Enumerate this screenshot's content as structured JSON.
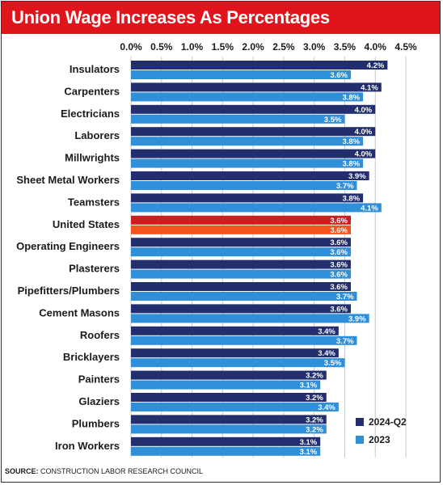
{
  "chart_data": {
    "type": "bar",
    "orientation": "horizontal",
    "title": "Union Wage Increases As Percentages",
    "source_label": "SOURCE:",
    "source_text": "CONSTRUCTION LABOR RESEARCH COUNCIL",
    "categories": [
      "Insulators",
      "Carpenters",
      "Electricians",
      "Laborers",
      "Millwrights",
      "Sheet Metal Workers",
      "Teamsters",
      "United States",
      "Operating Engineers",
      "Plasterers",
      "Pipefitters/Plumbers",
      "Cement Masons",
      "Roofers",
      "Bricklayers",
      "Painters",
      "Glaziers",
      "Plumbers",
      "Iron Workers"
    ],
    "series": [
      {
        "name": "2024-Q2",
        "values": [
          4.2,
          4.1,
          4.0,
          4.0,
          4.0,
          3.9,
          3.8,
          3.6,
          3.6,
          3.6,
          3.6,
          3.6,
          3.4,
          3.4,
          3.2,
          3.2,
          3.2,
          3.1
        ]
      },
      {
        "name": "2023",
        "values": [
          3.6,
          3.8,
          3.5,
          3.8,
          3.8,
          3.7,
          4.1,
          3.6,
          3.6,
          3.6,
          3.7,
          3.9,
          3.7,
          3.5,
          3.1,
          3.4,
          3.2,
          3.1
        ]
      }
    ],
    "value_labels": [
      [
        "4.2%",
        "4.1%",
        "4.0%",
        "4.0%",
        "4.0%",
        "3.9%",
        "3.8%",
        "3.6%",
        "3.6%",
        "3.6%",
        "3.6%",
        "3.6%",
        "3.4%",
        "3.4%",
        "3.2%",
        "3.2%",
        "3.2%",
        "3.1%"
      ],
      [
        "3.6%",
        "3.8%",
        "3.5%",
        "3.8%",
        "3.8%",
        "3.7%",
        "4.1%",
        "3.6%",
        "3.6%",
        "3.6%",
        "3.7%",
        "3.9%",
        "3.7%",
        "3.5%",
        "3.1%",
        "3.4%",
        "3.2%",
        "3.1%"
      ]
    ],
    "xlim": [
      0,
      4.5
    ],
    "xticks": [
      0,
      0.5,
      1.0,
      1.5,
      2.0,
      2.5,
      3.0,
      3.5,
      4.0,
      4.5
    ],
    "xtick_labels": [
      "0.0%",
      "0.5%",
      "1.0%",
      "1.5%",
      "2.0%",
      "2.5%",
      "3.0%",
      "3.5%",
      "4.0%",
      "4.5%"
    ],
    "xaxis_position": "top",
    "grid": true,
    "legend_position": "bottom-right",
    "highlight_category": "United States",
    "colors": {
      "series_2024": "#232e6e",
      "series_2023": "#2f8fd8",
      "highlight_2024": "#c8201e",
      "highlight_2023": "#f2531f",
      "title_bar": "#e0141b",
      "grid": "#c8c8c8"
    }
  }
}
